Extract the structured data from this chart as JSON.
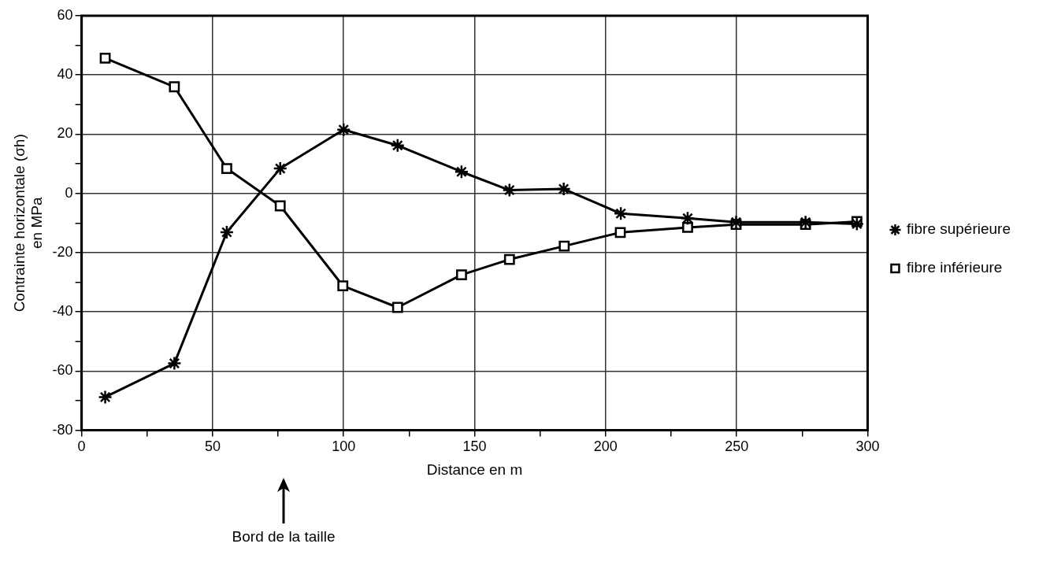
{
  "chart_data": {
    "type": "line",
    "xlabel": "Distance en m",
    "ylabel": "Contrainte horizontale (σh)\nen MPa",
    "xlim": [
      0,
      300
    ],
    "xticks": [
      0,
      {
        "value": 25,
        "label": null
      },
      50,
      {
        "value": 75,
        "label": null
      },
      100,
      {
        "value": 125,
        "label": null
      },
      150,
      {
        "value": 175,
        "label": null
      },
      200,
      {
        "value": 225,
        "label": null
      },
      250,
      {
        "value": 275,
        "label": null
      },
      300
    ],
    "ylim": [
      -80,
      60
    ],
    "yticks": [
      -80,
      {
        "value": -70,
        "label": null
      },
      -60,
      {
        "value": -50,
        "label": null
      },
      -40,
      {
        "value": -30,
        "label": null
      },
      -20,
      {
        "value": -10,
        "label": null
      },
      0,
      {
        "value": 10,
        "label": null
      },
      20,
      {
        "value": 30,
        "label": null
      },
      40,
      {
        "value": 50,
        "label": null
      },
      60
    ],
    "grid": true,
    "legend": "right",
    "line_style": "solid",
    "series": [
      {
        "name": "fibre inférieure",
        "color": "#000000",
        "marker": "square",
        "x": [
          9,
          35.4,
          55.4,
          75.8,
          99.7,
          120.6,
          145,
          163.3,
          184.2,
          205.6,
          231.3,
          249.8,
          276.3,
          295.9
        ],
        "values": [
          45.7,
          36,
          8.4,
          -4.2,
          -31.2,
          -38.5,
          -27.5,
          -22.3,
          -17.8,
          -13.2,
          -11.5,
          -10.5,
          -10.5,
          -9.5
        ]
      },
      {
        "name": "fibre supérieure",
        "color": "#000000",
        "marker": "cross",
        "x": [
          9,
          35.4,
          55.4,
          75.8,
          100,
          120.6,
          145,
          163.3,
          184,
          205.8,
          231.3,
          249.8,
          276.3,
          295.9
        ],
        "values": [
          -68.8,
          -57.4,
          -13.1,
          8.4,
          21.5,
          16.2,
          7.3,
          1.1,
          1.5,
          -6.8,
          -8.4,
          -9.7,
          -9.7,
          -10.3
        ]
      }
    ],
    "annotations": [
      "Bord de la taille"
    ]
  }
}
